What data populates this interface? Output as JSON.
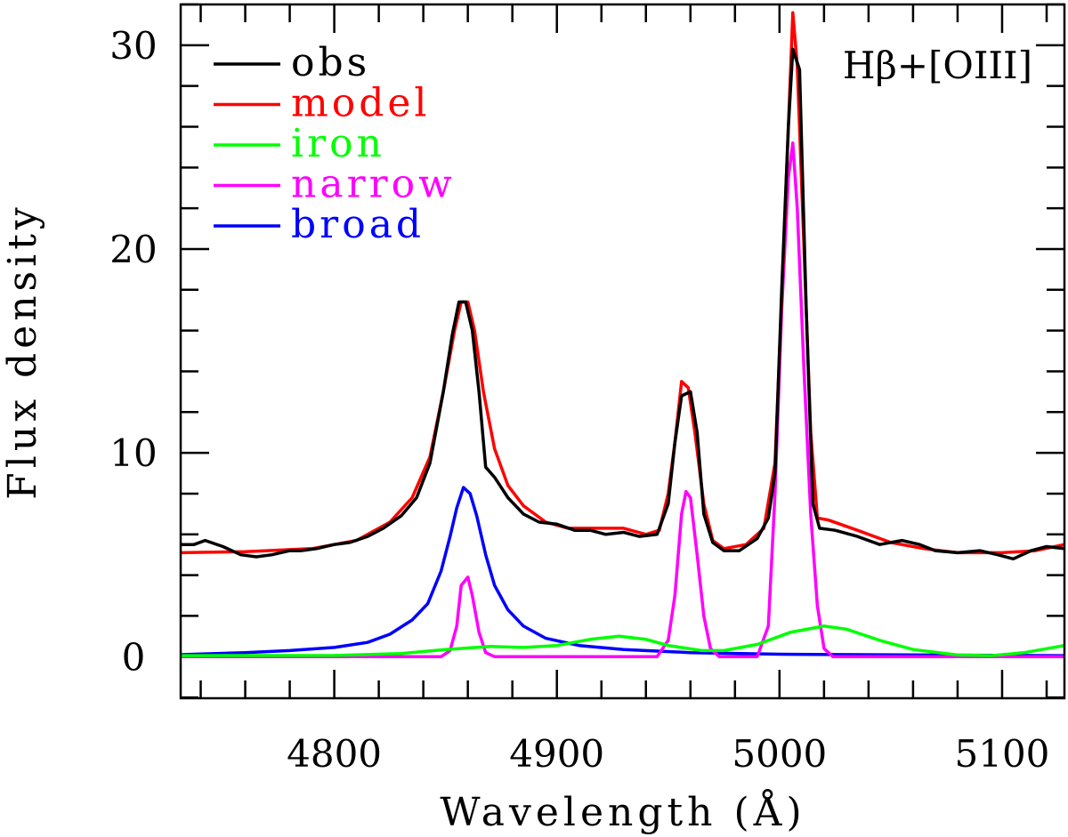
{
  "chart_data": {
    "type": "line",
    "title": "",
    "annotation": "Hβ+[OIII]",
    "xlabel": "Wavelength (Å)",
    "ylabel": "Flux density",
    "xlim": [
      4731,
      5128
    ],
    "ylim": [
      -2.04,
      32.0
    ],
    "xticks": [
      4800,
      4900,
      5000,
      5100
    ],
    "xtick_labels": [
      "4800",
      "4900",
      "5000",
      "5100"
    ],
    "xminor_step": 20,
    "yticks": [
      0,
      10,
      20,
      30
    ],
    "ytick_labels": [
      "0",
      "10",
      "20",
      "30"
    ],
    "yminor_step": 2,
    "grid": false,
    "legend_position": "top-left",
    "series": [
      {
        "name": "obs",
        "color": "#000000",
        "points": [
          [
            4731,
            5.5
          ],
          [
            4737,
            5.5
          ],
          [
            4742,
            5.7
          ],
          [
            4750,
            5.4
          ],
          [
            4758,
            5.0
          ],
          [
            4765,
            4.9
          ],
          [
            4772,
            5.0
          ],
          [
            4780,
            5.2
          ],
          [
            4785,
            5.2
          ],
          [
            4792,
            5.3
          ],
          [
            4800,
            5.5
          ],
          [
            4807,
            5.6
          ],
          [
            4815,
            5.9
          ],
          [
            4822,
            6.3
          ],
          [
            4830,
            6.9
          ],
          [
            4837,
            7.8
          ],
          [
            4843,
            9.5
          ],
          [
            4849,
            13.0
          ],
          [
            4853,
            15.8
          ],
          [
            4856,
            17.4
          ],
          [
            4859,
            17.4
          ],
          [
            4862,
            16.0
          ],
          [
            4865,
            13.0
          ],
          [
            4868,
            9.3
          ],
          [
            4872,
            8.8
          ],
          [
            4878,
            7.8
          ],
          [
            4885,
            7.0
          ],
          [
            4892,
            6.6
          ],
          [
            4900,
            6.5
          ],
          [
            4908,
            6.2
          ],
          [
            4915,
            6.2
          ],
          [
            4922,
            6.0
          ],
          [
            4930,
            6.1
          ],
          [
            4937,
            5.9
          ],
          [
            4945,
            6.0
          ],
          [
            4950,
            7.5
          ],
          [
            4953,
            10.5
          ],
          [
            4956,
            12.8
          ],
          [
            4960,
            13.0
          ],
          [
            4963,
            11.0
          ],
          [
            4966,
            7.0
          ],
          [
            4970,
            5.6
          ],
          [
            4975,
            5.2
          ],
          [
            4982,
            5.2
          ],
          [
            4990,
            5.8
          ],
          [
            4995,
            6.8
          ],
          [
            4998,
            9.0
          ],
          [
            5001,
            18.0
          ],
          [
            5004,
            26.0
          ],
          [
            5006,
            29.8
          ],
          [
            5009,
            28.8
          ],
          [
            5012,
            17.0
          ],
          [
            5015,
            7.5
          ],
          [
            5018,
            6.3
          ],
          [
            5025,
            6.2
          ],
          [
            5035,
            5.9
          ],
          [
            5045,
            5.5
          ],
          [
            5055,
            5.7
          ],
          [
            5063,
            5.5
          ],
          [
            5070,
            5.2
          ],
          [
            5080,
            5.1
          ],
          [
            5090,
            5.2
          ],
          [
            5098,
            5.0
          ],
          [
            5105,
            4.8
          ],
          [
            5113,
            5.2
          ],
          [
            5120,
            5.4
          ],
          [
            5128,
            5.3
          ]
        ]
      },
      {
        "name": "model",
        "color": "#ff0000",
        "points": [
          [
            4731,
            5.1
          ],
          [
            4760,
            5.15
          ],
          [
            4790,
            5.3
          ],
          [
            4810,
            5.7
          ],
          [
            4825,
            6.6
          ],
          [
            4835,
            7.8
          ],
          [
            4843,
            9.8
          ],
          [
            4849,
            13.0
          ],
          [
            4854,
            16.0
          ],
          [
            4857,
            17.4
          ],
          [
            4860,
            17.4
          ],
          [
            4863,
            16.0
          ],
          [
            4867,
            13.0
          ],
          [
            4872,
            10.2
          ],
          [
            4878,
            8.4
          ],
          [
            4885,
            7.4
          ],
          [
            4895,
            6.6
          ],
          [
            4905,
            6.3
          ],
          [
            4920,
            6.3
          ],
          [
            4930,
            6.3
          ],
          [
            4940,
            6.0
          ],
          [
            4946,
            6.2
          ],
          [
            4950,
            8.0
          ],
          [
            4953,
            10.5
          ],
          [
            4956,
            13.5
          ],
          [
            4959,
            13.2
          ],
          [
            4962,
            11.0
          ],
          [
            4966,
            7.5
          ],
          [
            4970,
            5.7
          ],
          [
            4975,
            5.3
          ],
          [
            4985,
            5.5
          ],
          [
            4993,
            6.3
          ],
          [
            4998,
            9.5
          ],
          [
            5001,
            17.5
          ],
          [
            5004,
            26.0
          ],
          [
            5006,
            31.6
          ],
          [
            5008,
            29.0
          ],
          [
            5011,
            20.0
          ],
          [
            5014,
            11.0
          ],
          [
            5017,
            6.8
          ],
          [
            5022,
            6.7
          ],
          [
            5035,
            6.2
          ],
          [
            5050,
            5.6
          ],
          [
            5065,
            5.3
          ],
          [
            5080,
            5.1
          ],
          [
            5100,
            5.1
          ],
          [
            5115,
            5.2
          ],
          [
            5128,
            5.5
          ]
        ]
      },
      {
        "name": "iron",
        "color": "#00ff00",
        "points": [
          [
            4731,
            0.05
          ],
          [
            4800,
            0.06
          ],
          [
            4830,
            0.15
          ],
          [
            4850,
            0.35
          ],
          [
            4870,
            0.5
          ],
          [
            4885,
            0.45
          ],
          [
            4900,
            0.55
          ],
          [
            4915,
            0.85
          ],
          [
            4928,
            1.0
          ],
          [
            4940,
            0.85
          ],
          [
            4950,
            0.55
          ],
          [
            4965,
            0.3
          ],
          [
            4975,
            0.3
          ],
          [
            4990,
            0.6
          ],
          [
            5005,
            1.2
          ],
          [
            5020,
            1.5
          ],
          [
            5030,
            1.35
          ],
          [
            5045,
            0.8
          ],
          [
            5060,
            0.35
          ],
          [
            5080,
            0.08
          ],
          [
            5095,
            0.05
          ],
          [
            5110,
            0.2
          ],
          [
            5128,
            0.55
          ]
        ]
      },
      {
        "name": "narrow",
        "color": "#ff00ff",
        "points": [
          [
            4731,
            0
          ],
          [
            4848,
            0
          ],
          [
            4852,
            0.3
          ],
          [
            4855,
            1.5
          ],
          [
            4857,
            3.5
          ],
          [
            4860,
            3.9
          ],
          [
            4862,
            3.0
          ],
          [
            4865,
            1.2
          ],
          [
            4868,
            0.2
          ],
          [
            4872,
            0
          ],
          [
            4945,
            0
          ],
          [
            4950,
            0.8
          ],
          [
            4953,
            3.0
          ],
          [
            4956,
            7.0
          ],
          [
            4958,
            8.1
          ],
          [
            4960,
            7.8
          ],
          [
            4963,
            5.0
          ],
          [
            4966,
            2.0
          ],
          [
            4969,
            0.4
          ],
          [
            4973,
            0
          ],
          [
            4990,
            0
          ],
          [
            4995,
            1.5
          ],
          [
            4998,
            8.0
          ],
          [
            5001,
            17.0
          ],
          [
            5004,
            23.5
          ],
          [
            5006,
            25.2
          ],
          [
            5008,
            22.0
          ],
          [
            5011,
            14.0
          ],
          [
            5014,
            7.0
          ],
          [
            5017,
            2.5
          ],
          [
            5020,
            0.4
          ],
          [
            5024,
            0
          ],
          [
            5128,
            0
          ]
        ]
      },
      {
        "name": "broad",
        "color": "#0000ff",
        "points": [
          [
            4731,
            0.1
          ],
          [
            4760,
            0.2
          ],
          [
            4780,
            0.3
          ],
          [
            4800,
            0.45
          ],
          [
            4815,
            0.7
          ],
          [
            4825,
            1.1
          ],
          [
            4835,
            1.8
          ],
          [
            4842,
            2.6
          ],
          [
            4848,
            4.2
          ],
          [
            4852,
            5.9
          ],
          [
            4855,
            7.3
          ],
          [
            4858,
            8.3
          ],
          [
            4861,
            8.0
          ],
          [
            4864,
            6.9
          ],
          [
            4868,
            5.0
          ],
          [
            4872,
            3.5
          ],
          [
            4878,
            2.3
          ],
          [
            4885,
            1.5
          ],
          [
            4895,
            0.9
          ],
          [
            4910,
            0.55
          ],
          [
            4930,
            0.35
          ],
          [
            4960,
            0.2
          ],
          [
            5000,
            0.12
          ],
          [
            5128,
            0.05
          ]
        ]
      }
    ]
  }
}
